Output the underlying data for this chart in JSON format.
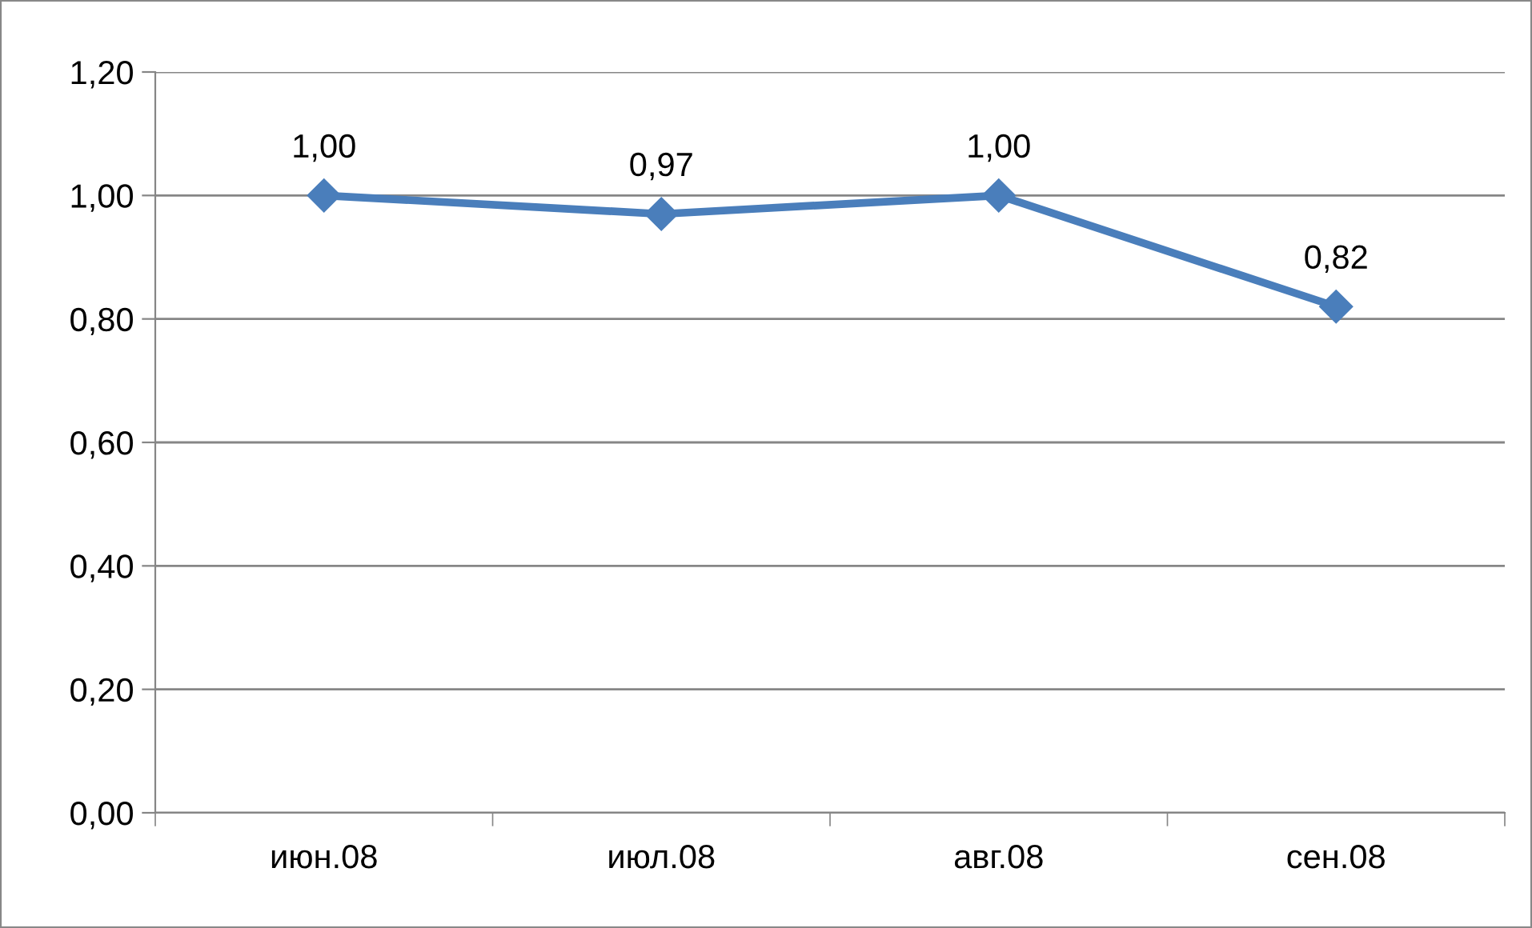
{
  "chart_data": {
    "type": "line",
    "categories": [
      "июн.08",
      "июл.08",
      "авг.08",
      "сен.08"
    ],
    "series": [
      {
        "color": "#4a7ebb",
        "values": [
          1.0,
          0.97,
          1.0,
          0.82
        ],
        "value_labels": [
          "1,00",
          "0,97",
          "1,00",
          "0,82"
        ]
      }
    ],
    "ylim": [
      0,
      1.2
    ],
    "yticks": [
      {
        "value": 0,
        "label": "0,00"
      },
      {
        "value": 0.2,
        "label": "0,20"
      },
      {
        "value": 0.4,
        "label": "0,40"
      },
      {
        "value": 0.6,
        "label": "0,60"
      },
      {
        "value": 0.8,
        "label": "0,80"
      },
      {
        "value": 1.0,
        "label": "1,00"
      },
      {
        "value": 1.2,
        "label": "1,20"
      }
    ],
    "grid": "y",
    "marker": "diamond",
    "line_style": "solid"
  }
}
